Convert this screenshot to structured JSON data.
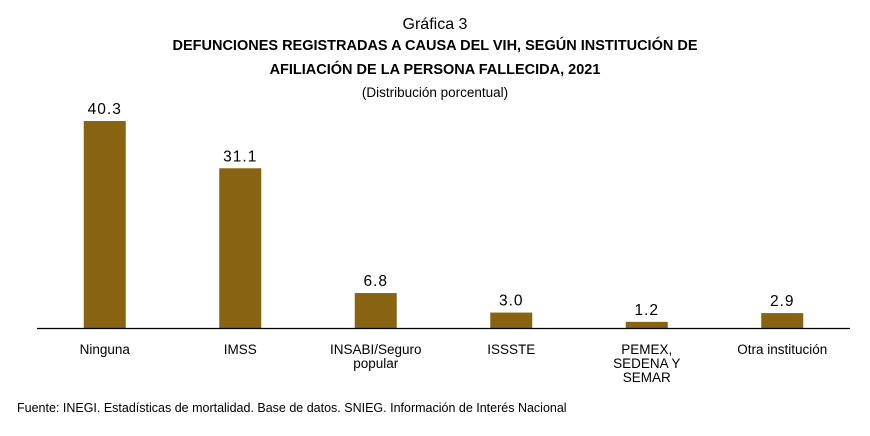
{
  "chart_data": {
    "type": "bar",
    "title_label": "Gráfica 3",
    "title_lines": [
      "DEFUNCIONES REGISTRADAS A CAUSA DEL VIH, SEGÚN INSTITUCIÓN DE",
      "AFILIACIÓN DE LA PERSONA FALLECIDA, 2021"
    ],
    "subtitle": "(Distribución porcentual)",
    "categories": [
      [
        "Ninguna"
      ],
      [
        "IMSS"
      ],
      [
        "INSABI/Seguro",
        "popular"
      ],
      [
        "ISSSTE"
      ],
      [
        "PEMEX,",
        "SEDENA Y",
        "SEMAR"
      ],
      [
        "Otra institución"
      ]
    ],
    "values": [
      40.3,
      31.1,
      6.8,
      3.0,
      1.2,
      2.9
    ],
    "value_labels": [
      "40.3",
      "31.1",
      "6.8",
      "3.0",
      "1.2",
      "2.9"
    ],
    "ylim": [
      0,
      40.3
    ],
    "bar_color": "#876312",
    "grid": false,
    "legend": "none"
  },
  "source": "Fuente: INEGI. Estadísticas de mortalidad. Base de datos. SNIEG. Información de Interés Nacional"
}
